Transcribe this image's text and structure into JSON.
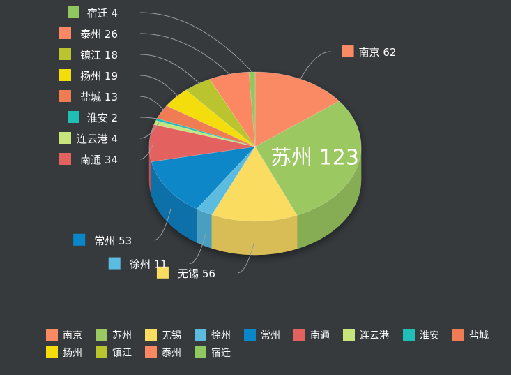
{
  "chart_data": {
    "type": "pie",
    "style": "3d",
    "legend_position": "bottom",
    "slices": [
      {
        "name": "南京",
        "value": 62,
        "color": "#f98a63",
        "side": "#d4704f"
      },
      {
        "name": "苏州",
        "value": 123,
        "color": "#9bc860",
        "side": "#86ad52"
      },
      {
        "name": "无锡",
        "value": 56,
        "color": "#fadc60",
        "side": "#d8bc55"
      },
      {
        "name": "徐州",
        "value": 11,
        "color": "#5bbcdf",
        "side": "#4a9fc0"
      },
      {
        "name": "常州",
        "value": 53,
        "color": "#0a87c8",
        "side": "#0870a8"
      },
      {
        "name": "南通",
        "value": 34,
        "color": "#e3625f",
        "side": "#c05250"
      },
      {
        "name": "连云港",
        "value": 4,
        "color": "#c6e67c",
        "side": "#a8c66a"
      },
      {
        "name": "淮安",
        "value": 2,
        "color": "#1fbfb8",
        "side": "#1aa29c"
      },
      {
        "name": "盐城",
        "value": 13,
        "color": "#ef7c52",
        "side": "#cc6945"
      },
      {
        "name": "扬州",
        "value": 19,
        "color": "#f3dd0a",
        "side": "#cfbc08"
      },
      {
        "name": "镇江",
        "value": 18,
        "color": "#b9c42f",
        "side": "#9ea628"
      },
      {
        "name": "泰州",
        "value": 26,
        "color": "#fb8862",
        "side": "#d67353"
      },
      {
        "name": "宿迁",
        "value": 4,
        "color": "#8fc85f",
        "side": "#7aab51"
      }
    ]
  }
}
